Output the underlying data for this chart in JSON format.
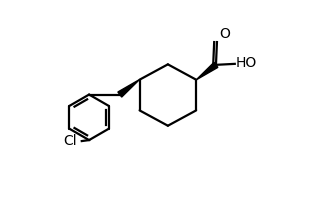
{
  "background_color": "#ffffff",
  "line_color": "#000000",
  "line_width": 1.6,
  "text_color": "#000000",
  "figsize": [
    3.1,
    1.98
  ],
  "dpi": 100,
  "xlim": [
    0.0,
    1.0
  ],
  "ylim": [
    0.0,
    1.0
  ]
}
